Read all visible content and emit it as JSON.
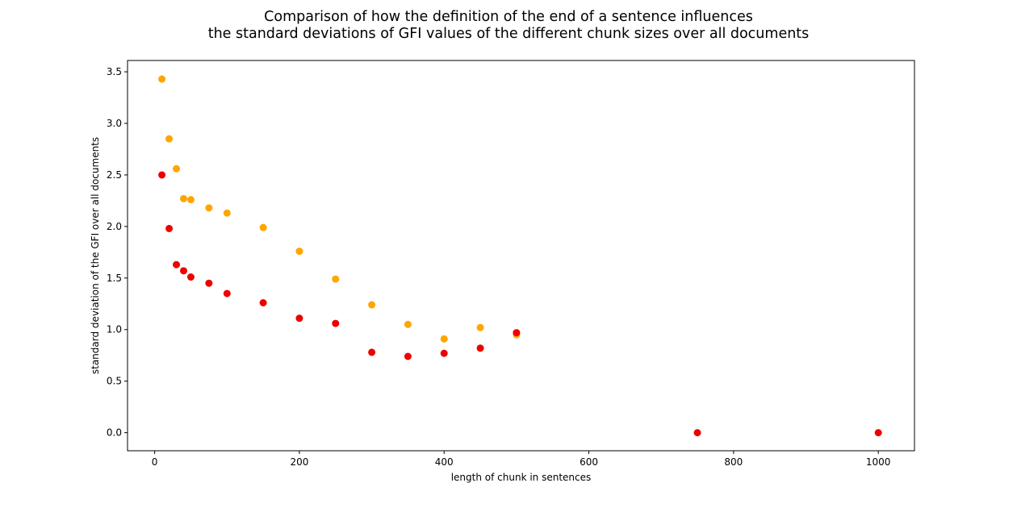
{
  "chart_data": {
    "type": "scatter",
    "title_lines": [
      "Comparison of how the definition of the end of a sentence influences",
      "the standard deviations of GFI values of the different chunk sizes over all documents"
    ],
    "xlabel": "length of chunk in sentences",
    "ylabel": "standard deviation of the GFI over all documents",
    "xlim": [
      -37.5,
      1050
    ],
    "ylim": [
      -0.175,
      3.61
    ],
    "xticks": [
      0,
      200,
      400,
      600,
      800,
      1000
    ],
    "xtick_labels": [
      "0",
      "200",
      "400",
      "600",
      "800",
      "1000"
    ],
    "yticks": [
      0.0,
      0.5,
      1.0,
      1.5,
      2.0,
      2.5,
      3.0,
      3.5
    ],
    "ytick_labels": [
      "0.0",
      "0.5",
      "1.0",
      "1.5",
      "2.0",
      "2.5",
      "3.0",
      "3.5"
    ],
    "grid": false,
    "legend": false,
    "series": [
      {
        "color": "#ffa500",
        "x": [
          10,
          20,
          30,
          40,
          50,
          75,
          100,
          150,
          200,
          250,
          300,
          350,
          400,
          450,
          500
        ],
        "y": [
          3.43,
          2.85,
          2.56,
          2.27,
          2.26,
          2.18,
          2.13,
          1.99,
          1.76,
          1.49,
          1.24,
          1.05,
          0.91,
          1.02,
          0.95
        ]
      },
      {
        "color": "#ee0000",
        "x": [
          10,
          20,
          30,
          40,
          50,
          75,
          100,
          150,
          200,
          250,
          300,
          350,
          400,
          450,
          500,
          750,
          1000
        ],
        "y": [
          2.5,
          1.98,
          1.63,
          1.57,
          1.51,
          1.45,
          1.35,
          1.26,
          1.11,
          1.06,
          0.78,
          0.74,
          0.77,
          0.82,
          0.97,
          0.0,
          0.0
        ]
      }
    ]
  }
}
